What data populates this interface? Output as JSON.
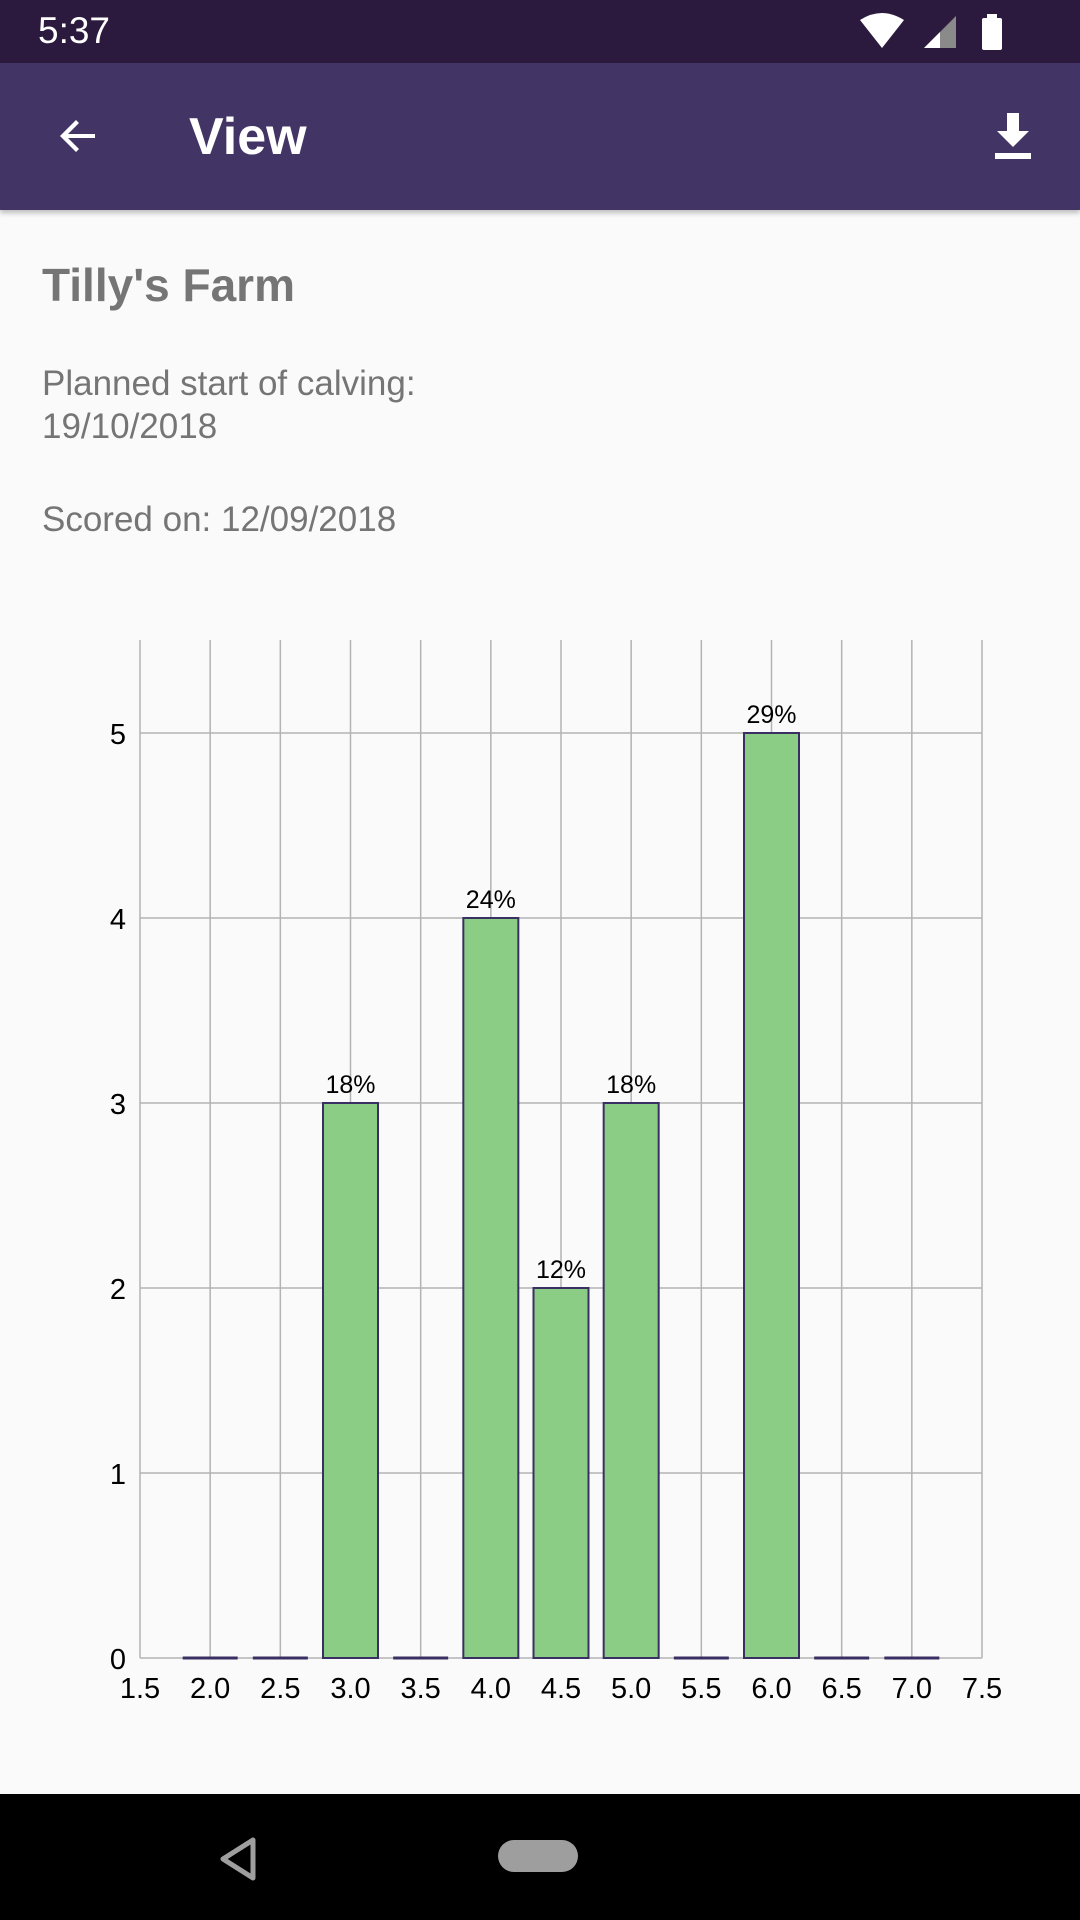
{
  "status_bar": {
    "time": "5:37",
    "icons": [
      "wifi-icon",
      "cell-signal-icon",
      "battery-icon"
    ]
  },
  "app_bar": {
    "title": "View",
    "back_icon": "arrow-left-icon",
    "download_icon": "download-icon"
  },
  "farm": {
    "name": "Tilly's Farm",
    "planned_start_label": "Planned start of calving:",
    "planned_start_date": "19/10/2018",
    "scored_on": "Scored on: 12/09/2018"
  },
  "colors": {
    "status_bar": "#2c1a3e",
    "app_bar": "#433466",
    "bar_fill": "#8ccd86",
    "bar_stroke": "#3a2f62",
    "grid": "#b3b3b3"
  },
  "chart_data": {
    "type": "bar",
    "x_ticks": [
      "1.5",
      "2.0",
      "2.5",
      "3.0",
      "3.5",
      "4.0",
      "4.5",
      "5.0",
      "5.5",
      "6.0",
      "6.5",
      "7.0",
      "7.5"
    ],
    "y_ticks": [
      "0",
      "1",
      "2",
      "3",
      "4",
      "5"
    ],
    "x": [
      2.0,
      2.5,
      3.0,
      3.5,
      4.0,
      4.5,
      5.0,
      5.5,
      6.0,
      6.5,
      7.0
    ],
    "values": [
      0,
      0,
      3,
      0,
      4,
      2,
      3,
      0,
      5,
      0,
      0
    ],
    "labels": [
      "",
      "",
      "18%",
      "",
      "24%",
      "12%",
      "18%",
      "",
      "29%",
      "",
      ""
    ],
    "xlim": [
      1.5,
      7.5
    ],
    "ylim": [
      0,
      5.5
    ],
    "grid": true,
    "legend": "none"
  },
  "nav_bar": {
    "back_icon": "nav-back-icon",
    "home_icon": "nav-home-icon"
  }
}
